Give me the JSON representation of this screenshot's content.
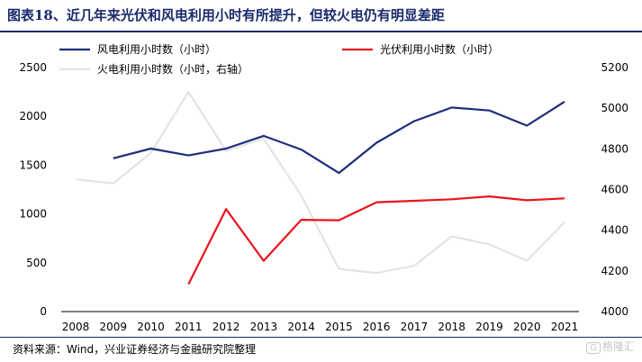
{
  "header": {
    "title": "图表18、近几年来光伏和风电利用小时有所提升，但较火电仍有明显差距"
  },
  "footer": {
    "source": "资料来源：Wind，兴业证券经济与金融研究院整理",
    "watermark_icon": "G",
    "watermark_text": "格隆汇"
  },
  "chart_data": {
    "type": "line",
    "title": "",
    "xlabel": "",
    "ylabel": "",
    "categories": [
      "2008",
      "2009",
      "2010",
      "2011",
      "2012",
      "2013",
      "2014",
      "2015",
      "2016",
      "2017",
      "2018",
      "2019",
      "2020",
      "2021"
    ],
    "ylim": [
      0,
      2500
    ],
    "y2lim": [
      4000,
      5200
    ],
    "yticks": [
      "0",
      "500",
      "1000",
      "1500",
      "2000",
      "2500"
    ],
    "y2ticks": [
      "4000",
      "4200",
      "4400",
      "4600",
      "4800",
      "5000",
      "5200"
    ],
    "legend_position": "top",
    "series": [
      {
        "name": "风电利用小时数（小时）",
        "axis": "left",
        "color": "#1f2d7a",
        "values": [
          null,
          1570,
          1670,
          1600,
          1670,
          1800,
          1660,
          1420,
          1730,
          1950,
          2090,
          2060,
          1905,
          2150
        ]
      },
      {
        "name": "光伏利用小时数（小时）",
        "axis": "left",
        "color": "#e8151b",
        "values": [
          null,
          null,
          null,
          280,
          1050,
          520,
          940,
          935,
          1120,
          1135,
          1150,
          1180,
          1140,
          1160
        ]
      },
      {
        "name": "火电利用小时数（小时，右轴）",
        "axis": "right",
        "color": "#e3e3e3",
        "values": [
          4650,
          4630,
          4780,
          5080,
          4790,
          4850,
          4570,
          4210,
          4190,
          4225,
          4370,
          4330,
          4250,
          4440
        ]
      }
    ]
  }
}
